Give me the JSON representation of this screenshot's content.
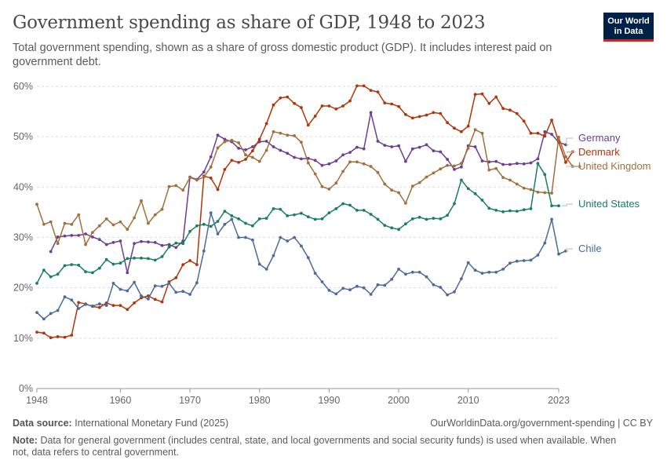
{
  "header": {
    "title": "Government spending as share of GDP, 1948 to 2023",
    "subtitle": "Total government spending, shown as a share of gross domestic product (GDP). It includes interest paid on government debt.",
    "logo_line1": "Our World",
    "logo_line2": "in Data"
  },
  "footer": {
    "source_label": "Data source:",
    "source_text": "International Monetary Fund (2025)",
    "url": "OurWorldinData.org/government-spending | CC BY",
    "note_label": "Note:",
    "note_text": "Data for general government (includes central, state, and local governments and social security funds) is used when available. When not, data refers to central government."
  },
  "chart_data": {
    "type": "line",
    "x_start": 1948,
    "x_end": 2023,
    "xlim": [
      1948,
      2023
    ],
    "ylim": [
      0,
      60
    ],
    "x_ticks": [
      "1948",
      "1960",
      "1970",
      "1980",
      "1990",
      "2000",
      "2010",
      "2023"
    ],
    "y_ticks": [
      "0%",
      "10%",
      "20%",
      "30%",
      "40%",
      "50%",
      "60%"
    ],
    "grid": true,
    "legend": "right (line end labels)",
    "series": [
      {
        "name": "Germany",
        "color": "#6d3e91",
        "start": 1950,
        "values": [
          27.2,
          30.1,
          30.3,
          30.4,
          30.4,
          30.7,
          30.1,
          29.6,
          28.6,
          29.0,
          29.3,
          23.0,
          28.8,
          29.2,
          29.1,
          29.0,
          28.4,
          28.6,
          28.0,
          29.3,
          42.0,
          41.5,
          43.0,
          46.0,
          50.3,
          49.5,
          49.0,
          47.7,
          47.4,
          48.0,
          49.0,
          49.1,
          48.0,
          47.3,
          46.7,
          45.9,
          45.6,
          45.7,
          45.3,
          44.3,
          44.6,
          45.2,
          46.4,
          46.9,
          47.9,
          47.6,
          54.8,
          49.1,
          48.3,
          48.0,
          48.2,
          45.1,
          47.6,
          47.9,
          48.4,
          47.2,
          47.0,
          45.5,
          43.5,
          44.0,
          48.2,
          48.0,
          45.2,
          45.0,
          45.1,
          44.5,
          44.5,
          44.7,
          44.6,
          44.8,
          45.6,
          51.0,
          50.5,
          48.9,
          48.4
        ]
      },
      {
        "name": "Denmark",
        "color": "#b13507",
        "start": 1948,
        "values": [
          11.2,
          11.0,
          10.1,
          10.3,
          10.2,
          10.6,
          17.1,
          16.8,
          16.3,
          16.1,
          17.0,
          16.5,
          16.5,
          15.7,
          17.0,
          18.0,
          18.4,
          17.7,
          17.2,
          21.2,
          22.0,
          24.6,
          25.4,
          24.6,
          42.2,
          41.8,
          39.5,
          43.5,
          45.3,
          44.9,
          45.5,
          47.2,
          49.5,
          52.6,
          56.3,
          57.7,
          57.9,
          56.6,
          55.8,
          52.3,
          54.1,
          56.1,
          56.1,
          55.5,
          56.1,
          57.1,
          60.1,
          60.1,
          59.2,
          58.9,
          56.7,
          56.5,
          56.0,
          54.4,
          53.7,
          54.0,
          54.3,
          54.8,
          54.6,
          52.8,
          51.7,
          51.0,
          52.1,
          58.4,
          58.5,
          56.6,
          57.9,
          55.6,
          55.3,
          54.6,
          53.1,
          50.7,
          50.7,
          50.1,
          53.3,
          49.0,
          44.9,
          47.0
        ]
      },
      {
        "name": "United Kingdom",
        "color": "#a2703b",
        "start": 1948,
        "values": [
          36.6,
          32.6,
          33.1,
          28.8,
          32.8,
          32.6,
          34.5,
          28.6,
          31.0,
          32.3,
          33.7,
          32.5,
          33.1,
          31.6,
          33.9,
          37.3,
          32.8,
          34.5,
          35.6,
          40.1,
          40.3,
          39.4,
          41.9,
          41.4,
          42.0,
          44.0,
          47.8,
          49.0,
          49.3,
          48.8,
          46.4,
          45.9,
          45.1,
          47.3,
          51.0,
          50.7,
          50.3,
          50.2,
          48.9,
          44.8,
          42.6,
          40.1,
          39.6,
          40.8,
          43.1,
          45.0,
          45.0,
          44.6,
          44.1,
          42.9,
          40.6,
          39.4,
          38.9,
          36.8,
          40.2,
          40.9,
          42.0,
          42.8,
          43.6,
          44.3,
          44.2,
          44.7,
          47.7,
          51.4,
          50.7,
          43.4,
          43.7,
          41.9,
          41.4,
          40.6,
          39.8,
          39.5,
          39.0,
          38.9,
          38.8,
          49.9,
          46.0,
          44.1,
          44.1
        ]
      },
      {
        "name": "United States",
        "color": "#18805d",
        "start": 1948,
        "values": [
          20.9,
          23.5,
          22.2,
          22.7,
          24.4,
          24.6,
          24.5,
          23.2,
          23.0,
          23.9,
          25.6,
          24.7,
          24.9,
          25.8,
          25.9,
          25.9,
          25.8,
          25.5,
          26.2,
          28.1,
          28.9,
          28.8,
          31.2,
          32.3,
          32.6,
          32.2,
          33.2,
          35.2,
          34.3,
          33.7,
          32.8,
          32.3,
          33.7,
          33.8,
          35.7,
          35.6,
          34.3,
          34.5,
          34.8,
          34.1,
          33.6,
          33.7,
          34.9,
          35.7,
          36.7,
          36.4,
          35.4,
          35.4,
          34.6,
          33.6,
          32.4,
          31.9,
          31.6,
          32.7,
          33.7,
          34.0,
          33.6,
          33.8,
          33.7,
          34.4,
          36.7,
          41.4,
          39.7,
          38.7,
          37.4,
          35.8,
          35.4,
          35.1,
          35.3,
          35.2,
          35.5,
          35.7,
          44.7,
          42.5,
          36.3,
          36.3
        ]
      },
      {
        "name": "Chile",
        "color": "#4c6a9c",
        "start": 1948,
        "values": [
          15.1,
          13.8,
          14.9,
          15.5,
          18.2,
          17.6,
          15.9,
          16.7,
          16.4,
          16.8,
          16.5,
          20.9,
          19.7,
          19.4,
          21.1,
          18.4,
          17.8,
          20.4,
          20.3,
          20.9,
          19.1,
          19.3,
          18.7,
          21.0,
          27.3,
          34.9,
          30.7,
          32.6,
          33.6,
          30.0,
          30.0,
          29.5,
          24.7,
          23.7,
          26.4,
          30.0,
          29.3,
          30.0,
          28.3,
          26.0,
          22.9,
          21.2,
          19.5,
          18.8,
          19.9,
          19.6,
          20.3,
          20.0,
          18.7,
          20.6,
          20.5,
          21.7,
          23.7,
          22.7,
          23.1,
          23.1,
          22.2,
          20.6,
          20.1,
          18.6,
          19.2,
          21.8,
          25.0,
          23.5,
          22.9,
          23.1,
          23.1,
          23.7,
          24.9,
          25.3,
          25.4,
          25.5,
          26.5,
          28.9,
          33.6,
          26.7,
          27.3
        ]
      }
    ]
  }
}
